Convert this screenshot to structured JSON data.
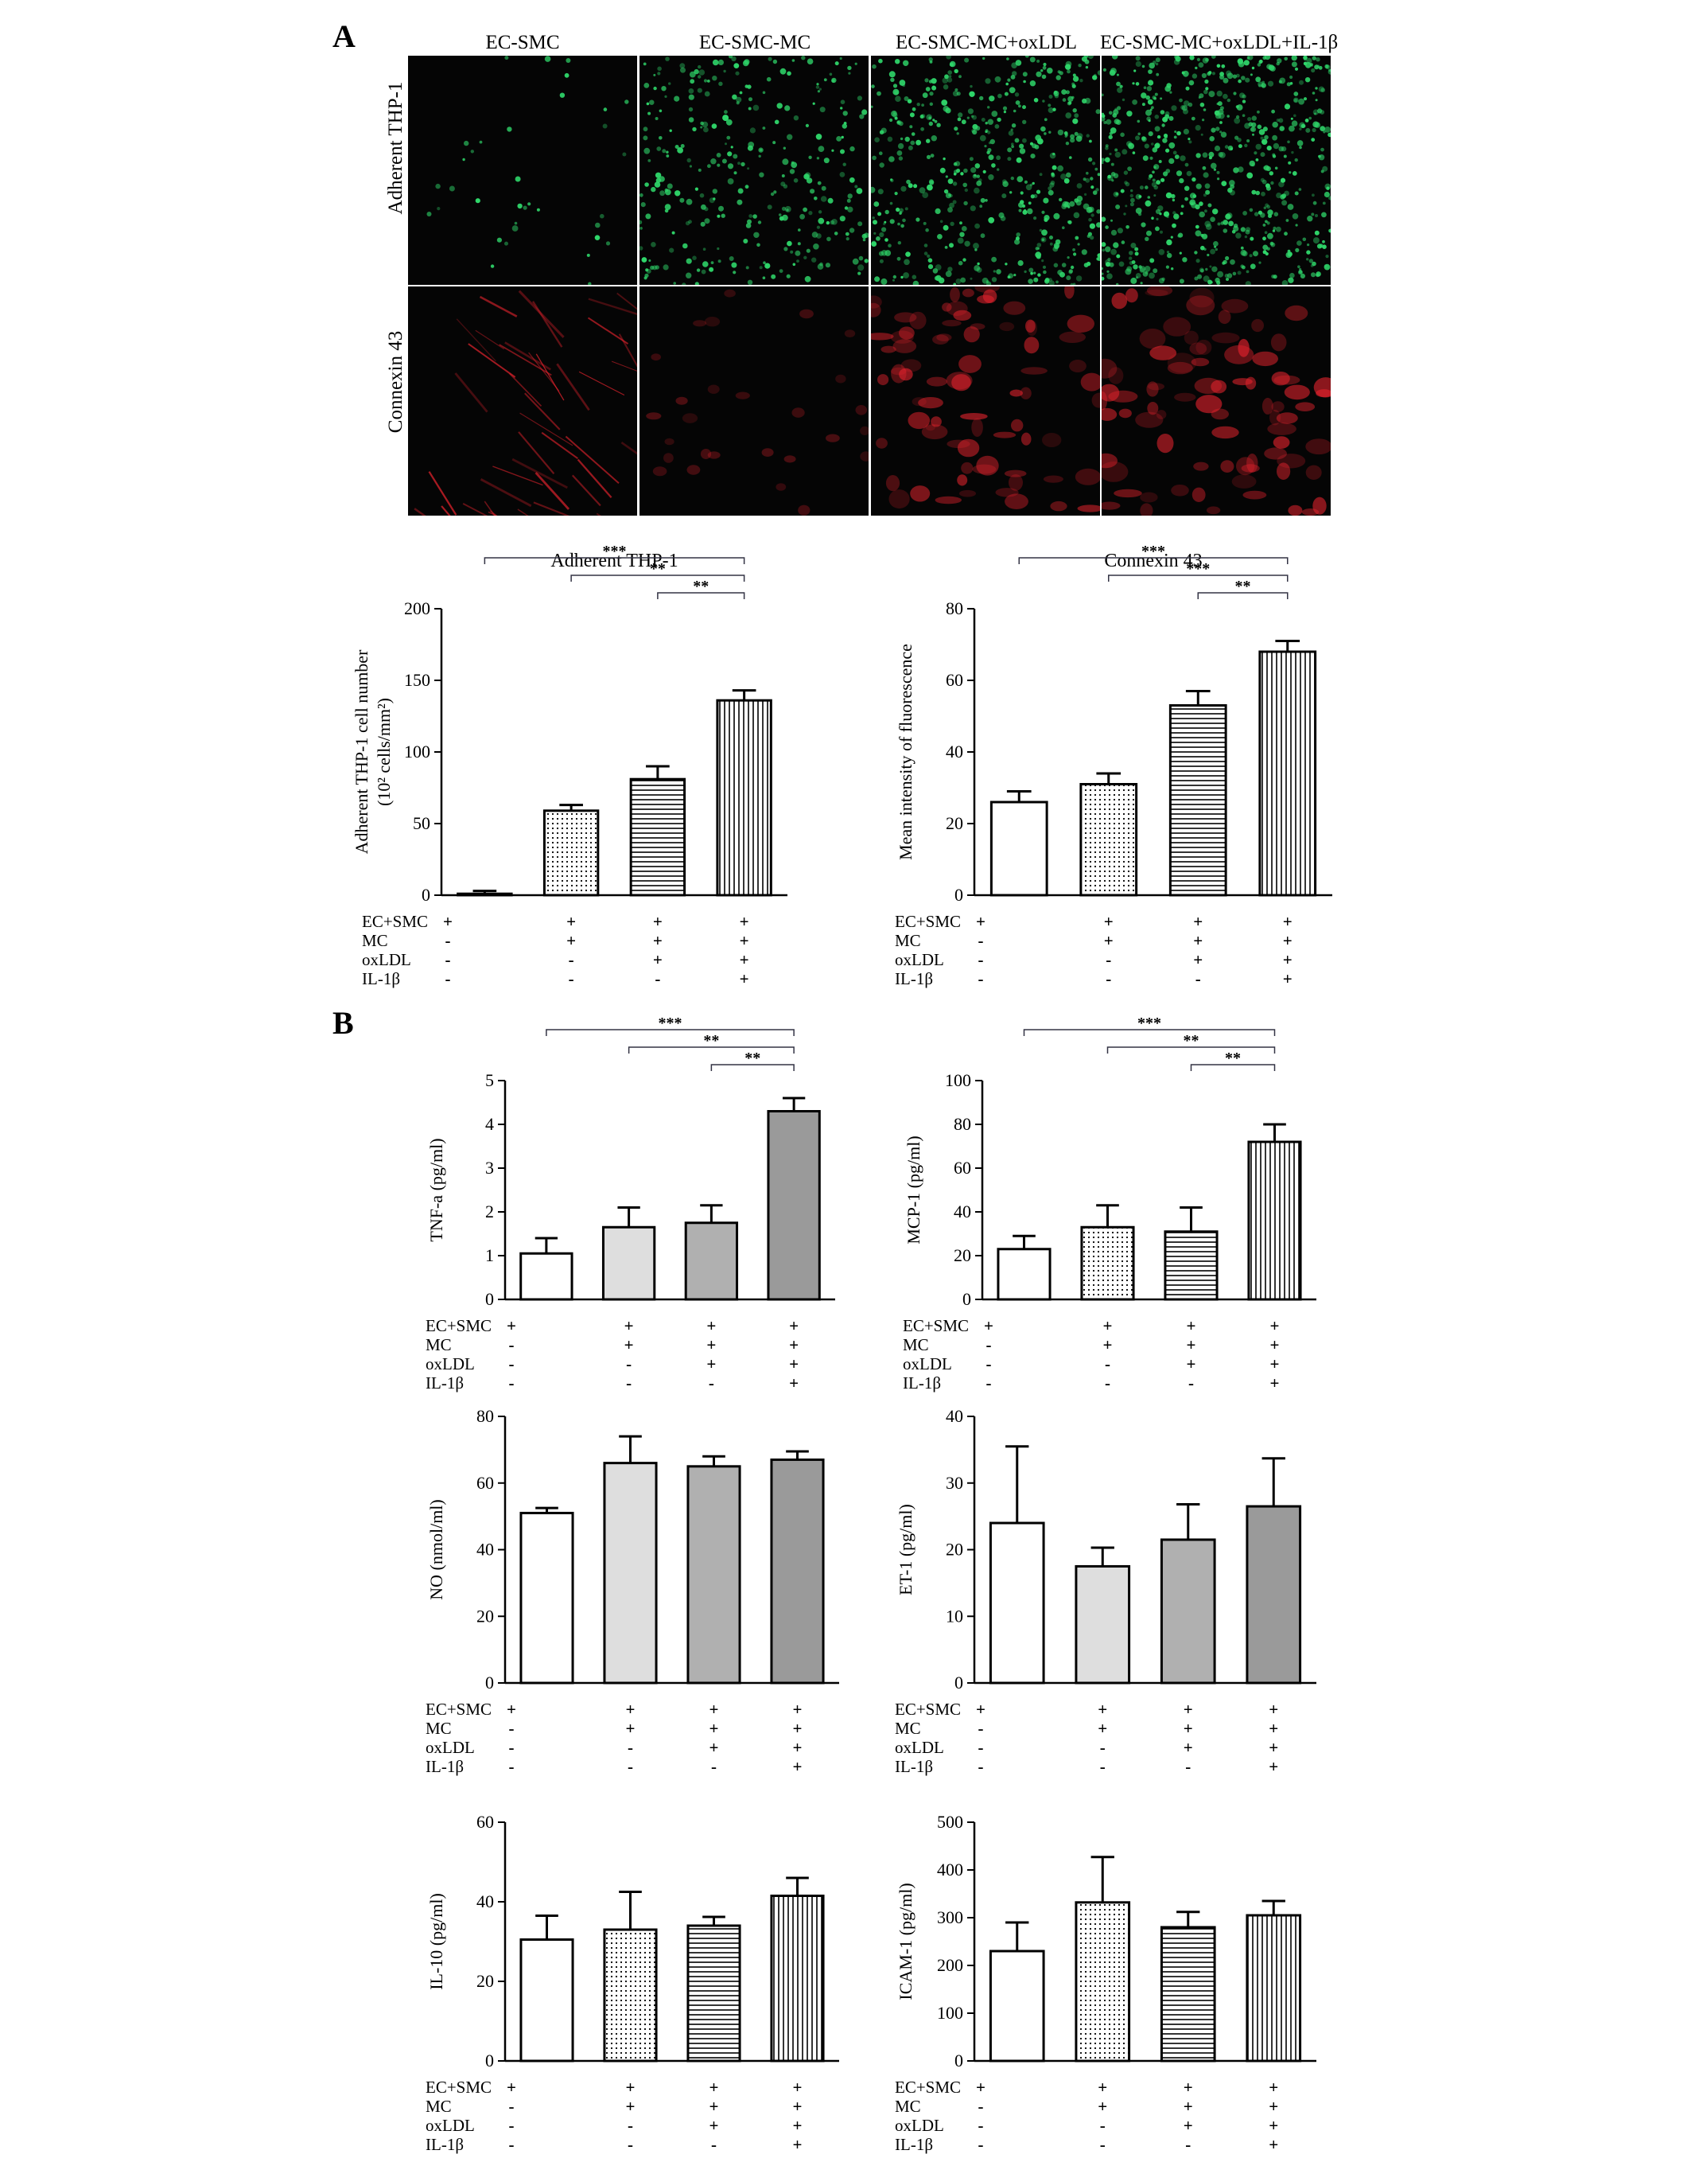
{
  "panels": {
    "a": "A",
    "b": "B"
  },
  "micrographs": {
    "columns": [
      "EC-SMC",
      "EC-SMC-MC",
      "EC-SMC-MC+oxLDL",
      "EC-SMC-MC+oxLDL+IL-1β"
    ],
    "rows": [
      "Adherent THP-1",
      "Connexin 43"
    ],
    "colors": {
      "green": "#2fd66a",
      "red": "#e4232d",
      "background": "#050505"
    },
    "density": {
      "green": [
        0.05,
        0.45,
        0.75,
        0.95
      ],
      "red": [
        0.45,
        0.3,
        0.85,
        0.9
      ]
    }
  },
  "condition_labels": [
    "EC+SMC",
    "MC",
    "oxLDL",
    "IL-1β"
  ],
  "condition_signs": [
    [
      "+",
      "-",
      "-",
      "-"
    ],
    [
      "+",
      "+",
      "-",
      "-"
    ],
    [
      "+",
      "+",
      "+",
      "-"
    ],
    [
      "+",
      "+",
      "+",
      "+"
    ]
  ],
  "chart_data": [
    {
      "id": "adherent-thp1",
      "type": "bar",
      "title": "Adherent THP-1",
      "xlabel": "",
      "ylabel": [
        "Adherent THP-1 cell number",
        "(10² cells/mm²)"
      ],
      "ylim": [
        0,
        200
      ],
      "yticks": [
        0,
        50,
        100,
        150,
        200
      ],
      "categories": [
        "EC+SMC",
        "EC+SMC+MC",
        "EC+SMC+MC+oxLDL",
        "EC+SMC+MC+oxLDL+IL-1β"
      ],
      "values": [
        1,
        59,
        81,
        136
      ],
      "errors": [
        2,
        4,
        9,
        7
      ],
      "fills": [
        "white",
        "dots",
        "hlines",
        "vlines"
      ],
      "significance": [
        {
          "from": 0,
          "to": 3,
          "label": "***"
        },
        {
          "from": 1,
          "to": 3,
          "label": "**"
        },
        {
          "from": 2,
          "to": 3,
          "label": "**"
        }
      ],
      "grid": false
    },
    {
      "id": "connexin-43",
      "type": "bar",
      "title": "Connexin 43",
      "xlabel": "",
      "ylabel": [
        "Mean intensity of fluorescence"
      ],
      "ylim": [
        0,
        80
      ],
      "yticks": [
        0,
        20,
        40,
        60,
        80
      ],
      "categories": [
        "EC+SMC",
        "EC+SMC+MC",
        "EC+SMC+MC+oxLDL",
        "EC+SMC+MC+oxLDL+IL-1β"
      ],
      "values": [
        26,
        31,
        53,
        68
      ],
      "errors": [
        3,
        3,
        4,
        3
      ],
      "fills": [
        "white",
        "dots",
        "hlines",
        "vlines"
      ],
      "significance": [
        {
          "from": 0,
          "to": 3,
          "label": "***"
        },
        {
          "from": 1,
          "to": 3,
          "label": "***"
        },
        {
          "from": 2,
          "to": 3,
          "label": "**"
        }
      ],
      "grid": false
    },
    {
      "id": "tnf-a",
      "type": "bar",
      "title": "",
      "xlabel": "",
      "ylabel": [
        "TNF-a (pg/ml)"
      ],
      "ylim": [
        0,
        5
      ],
      "yticks": [
        0,
        1,
        2,
        3,
        4,
        5
      ],
      "categories": [
        "EC+SMC",
        "EC+SMC+MC",
        "EC+SMC+MC+oxLDL",
        "EC+SMC+MC+oxLDL+IL-1β"
      ],
      "values": [
        1.05,
        1.65,
        1.75,
        4.3
      ],
      "errors": [
        0.35,
        0.45,
        0.4,
        0.3
      ],
      "fills": [
        "white",
        "lightgray",
        "midgray",
        "darkgray"
      ],
      "significance": [
        {
          "from": 0,
          "to": 3,
          "label": "***"
        },
        {
          "from": 1,
          "to": 3,
          "label": "**"
        },
        {
          "from": 2,
          "to": 3,
          "label": "**"
        }
      ],
      "grid": false
    },
    {
      "id": "mcp-1",
      "type": "bar",
      "title": "",
      "xlabel": "",
      "ylabel": [
        "MCP-1 (pg/ml)"
      ],
      "ylim": [
        0,
        100
      ],
      "yticks": [
        0,
        20,
        40,
        60,
        80,
        100
      ],
      "categories": [
        "EC+SMC",
        "EC+SMC+MC",
        "EC+SMC+MC+oxLDL",
        "EC+SMC+MC+oxLDL+IL-1β"
      ],
      "values": [
        23,
        33,
        31,
        72
      ],
      "errors": [
        6,
        10,
        11,
        8
      ],
      "fills": [
        "white",
        "dots",
        "hlines",
        "vlines"
      ],
      "significance": [
        {
          "from": 0,
          "to": 3,
          "label": "***"
        },
        {
          "from": 1,
          "to": 3,
          "label": "**"
        },
        {
          "from": 2,
          "to": 3,
          "label": "**"
        }
      ],
      "grid": false
    },
    {
      "id": "no",
      "type": "bar",
      "title": "",
      "xlabel": "",
      "ylabel": [
        "NO (nmol/ml)"
      ],
      "ylim": [
        0,
        80
      ],
      "yticks": [
        0,
        20,
        40,
        60,
        80
      ],
      "categories": [
        "EC+SMC",
        "EC+SMC+MC",
        "EC+SMC+MC+oxLDL",
        "EC+SMC+MC+oxLDL+IL-1β"
      ],
      "values": [
        51,
        66,
        65,
        67
      ],
      "errors": [
        1.5,
        8,
        3,
        2.5
      ],
      "fills": [
        "white",
        "lightgray",
        "midgray",
        "darkgray"
      ],
      "significance": [],
      "grid": false
    },
    {
      "id": "et-1",
      "type": "bar",
      "title": "",
      "xlabel": "",
      "ylabel": [
        "ET-1 (pg/ml)"
      ],
      "ylim": [
        0,
        40
      ],
      "yticks": [
        0,
        10,
        20,
        30,
        40
      ],
      "categories": [
        "EC+SMC",
        "EC+SMC+MC",
        "EC+SMC+MC+oxLDL",
        "EC+SMC+MC+oxLDL+IL-1β"
      ],
      "values": [
        24,
        17.5,
        21.5,
        26.5
      ],
      "errors": [
        11.5,
        2.8,
        5.3,
        7.2
      ],
      "fills": [
        "white",
        "lightgray",
        "midgray",
        "darkgray"
      ],
      "significance": [],
      "grid": false
    },
    {
      "id": "il-10",
      "type": "bar",
      "title": "",
      "xlabel": "",
      "ylabel": [
        "IL-10 (pg/ml)"
      ],
      "ylim": [
        0,
        60
      ],
      "yticks": [
        0,
        20,
        40,
        60
      ],
      "categories": [
        "EC+SMC",
        "EC+SMC+MC",
        "EC+SMC+MC+oxLDL",
        "EC+SMC+MC+oxLDL+IL-1β"
      ],
      "values": [
        30.5,
        33,
        34,
        41.5
      ],
      "errors": [
        6,
        9.5,
        2.2,
        4.5
      ],
      "fills": [
        "white",
        "dots",
        "hlines",
        "vlines"
      ],
      "significance": [],
      "grid": false
    },
    {
      "id": "icam-1",
      "type": "bar",
      "title": "",
      "xlabel": "",
      "ylabel": [
        "ICAM-1 (pg/ml)"
      ],
      "ylim": [
        0,
        500
      ],
      "yticks": [
        0,
        100,
        200,
        300,
        400,
        500
      ],
      "categories": [
        "EC+SMC",
        "EC+SMC+MC",
        "EC+SMC+MC+oxLDL",
        "EC+SMC+MC+oxLDL+IL-1β"
      ],
      "values": [
        230,
        332,
        280,
        305
      ],
      "errors": [
        60,
        95,
        32,
        30
      ],
      "fills": [
        "white",
        "dots",
        "hlines",
        "vlines"
      ],
      "significance": [],
      "grid": false
    }
  ]
}
